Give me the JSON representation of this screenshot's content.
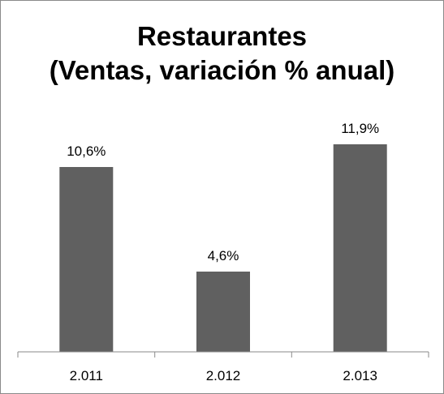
{
  "chart_data": {
    "type": "bar",
    "title_lines": [
      "Restaurantes",
      "(Ventas, variación % anual)"
    ],
    "categories": [
      "2.011",
      "2.012",
      "2.013"
    ],
    "values": [
      10.6,
      4.6,
      11.9
    ],
    "data_labels": [
      "10,6%",
      "4,6%",
      "11,9%"
    ],
    "xlabel": "",
    "ylabel": "",
    "ylim": [
      0,
      11.9
    ],
    "grid": false,
    "legend": "none",
    "bar_color": "#606060",
    "axis_color": "#8a8a8a"
  }
}
